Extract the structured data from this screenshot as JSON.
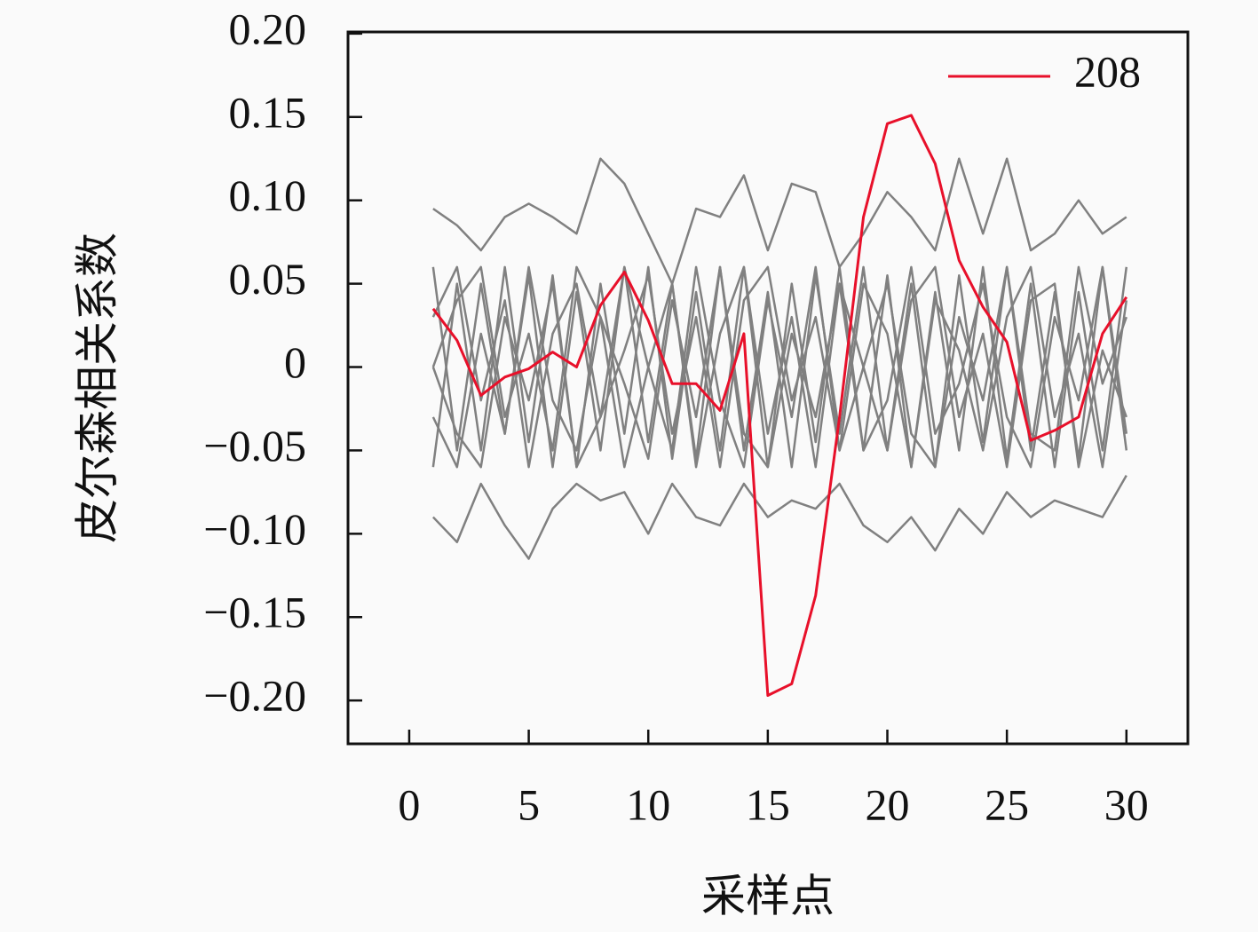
{
  "chart_data": {
    "type": "line",
    "x": [
      1,
      2,
      3,
      4,
      5,
      6,
      7,
      8,
      9,
      10,
      11,
      12,
      13,
      14,
      15,
      16,
      17,
      18,
      19,
      20,
      21,
      22,
      23,
      24,
      25,
      26,
      27,
      28,
      29,
      30
    ],
    "xlabel": "采样点",
    "ylabel": "皮尔森相关系数",
    "xlim": [
      -2.56,
      32.57
    ],
    "ylim": [
      -0.226,
      0.201
    ],
    "xticks": [
      0,
      5,
      10,
      15,
      20,
      25,
      30
    ],
    "yticks": [
      {
        "value": -0.2,
        "label": "−0.20"
      },
      {
        "value": -0.15,
        "label": "−0.15"
      },
      {
        "value": -0.1,
        "label": "−0.10"
      },
      {
        "value": -0.05,
        "label": "−0.05"
      },
      0,
      {
        "value": 0.05,
        "label": "0.05"
      },
      {
        "value": 0.1,
        "label": "0.10"
      },
      {
        "value": 0.15,
        "label": "0.15"
      },
      {
        "value": 0.2,
        "label": "0.20"
      }
    ],
    "legend": "upper right",
    "series": [
      {
        "color": "#808080",
        "values": [
          0.095,
          0.085,
          0.07,
          0.09,
          0.098,
          0.09,
          0.08,
          0.125,
          0.11,
          0.08,
          0.05,
          0.095,
          0.09,
          0.115,
          0.07,
          0.11,
          0.105,
          0.06,
          0.08,
          0.105,
          0.09,
          0.07,
          0.125,
          0.08,
          0.125,
          0.07,
          0.08,
          0.1,
          0.08,
          0.09
        ]
      },
      {
        "color": "#808080",
        "values": [
          -0.09,
          -0.105,
          -0.07,
          -0.095,
          -0.115,
          -0.085,
          -0.07,
          -0.08,
          -0.075,
          -0.1,
          -0.07,
          -0.09,
          -0.095,
          -0.07,
          -0.09,
          -0.08,
          -0.085,
          -0.07,
          -0.095,
          -0.105,
          -0.09,
          -0.11,
          -0.085,
          -0.1,
          -0.075,
          -0.09,
          -0.08,
          -0.085,
          -0.09,
          -0.065
        ]
      },
      {
        "color": "#808080",
        "values": [
          0.06,
          -0.05,
          0.05,
          -0.04,
          0.055,
          -0.06,
          0.045,
          -0.05,
          0.06,
          -0.045,
          0.05,
          -0.055,
          0.06,
          -0.05,
          0.045,
          -0.06,
          0.055,
          -0.04,
          0.06,
          -0.05,
          0.05,
          -0.06,
          0.055,
          -0.045,
          0.06,
          -0.05,
          0.045,
          -0.055,
          0.06,
          -0.05
        ]
      },
      {
        "color": "#808080",
        "values": [
          -0.06,
          0.05,
          -0.05,
          0.06,
          -0.045,
          0.055,
          -0.06,
          0.05,
          -0.04,
          0.06,
          -0.055,
          0.045,
          -0.05,
          0.06,
          -0.06,
          0.05,
          -0.045,
          0.06,
          -0.05,
          0.055,
          -0.06,
          0.045,
          -0.05,
          0.06,
          -0.055,
          0.05,
          -0.06,
          0.045,
          -0.05,
          0.06
        ]
      },
      {
        "color": "#808080",
        "values": [
          0.03,
          0.06,
          -0.02,
          0.04,
          -0.06,
          0.02,
          0.05,
          -0.03,
          0.01,
          0.055,
          -0.04,
          0.03,
          -0.06,
          0.04,
          0.06,
          -0.02,
          0.03,
          -0.05,
          0.05,
          0.02,
          -0.06,
          0.04,
          0.01,
          -0.05,
          0.03,
          0.06,
          -0.03,
          0.02,
          -0.06,
          0.04
        ]
      },
      {
        "color": "#808080",
        "values": [
          -0.03,
          -0.06,
          0.02,
          -0.04,
          0.06,
          -0.02,
          -0.05,
          0.03,
          -0.01,
          -0.055,
          0.04,
          -0.03,
          0.06,
          -0.04,
          -0.06,
          0.02,
          -0.03,
          0.05,
          -0.05,
          -0.02,
          0.06,
          -0.04,
          -0.01,
          0.05,
          -0.03,
          -0.06,
          0.03,
          -0.02,
          0.06,
          -0.04
        ]
      },
      {
        "color": "#808080",
        "values": [
          0.0,
          0.04,
          0.06,
          -0.03,
          0.02,
          -0.05,
          0.06,
          0.03,
          -0.06,
          0.0,
          0.05,
          -0.06,
          0.02,
          0.06,
          -0.04,
          0.03,
          -0.06,
          0.05,
          0.0,
          -0.05,
          0.04,
          0.06,
          -0.03,
          0.02,
          -0.06,
          0.04,
          0.05,
          -0.06,
          0.01,
          -0.03
        ]
      },
      {
        "color": "#808080",
        "values": [
          0.0,
          -0.04,
          -0.06,
          0.03,
          -0.02,
          0.05,
          -0.06,
          -0.03,
          0.06,
          0.0,
          -0.05,
          0.06,
          -0.02,
          -0.06,
          0.04,
          -0.03,
          0.06,
          -0.05,
          0.0,
          0.05,
          -0.04,
          -0.06,
          0.03,
          -0.02,
          0.06,
          -0.04,
          -0.05,
          0.06,
          -0.01,
          0.03
        ]
      },
      {
        "name": "208",
        "color": "#e8102a",
        "values": [
          0.035,
          0.016,
          -0.017,
          -0.006,
          -0.001,
          0.009,
          0.0,
          0.037,
          0.057,
          0.028,
          -0.01,
          -0.01,
          -0.026,
          0.02,
          -0.197,
          -0.19,
          -0.137,
          -0.03,
          0.09,
          0.146,
          0.151,
          0.122,
          0.064,
          0.036,
          0.015,
          -0.044,
          -0.038,
          -0.03,
          0.02,
          0.042
        ]
      }
    ]
  }
}
